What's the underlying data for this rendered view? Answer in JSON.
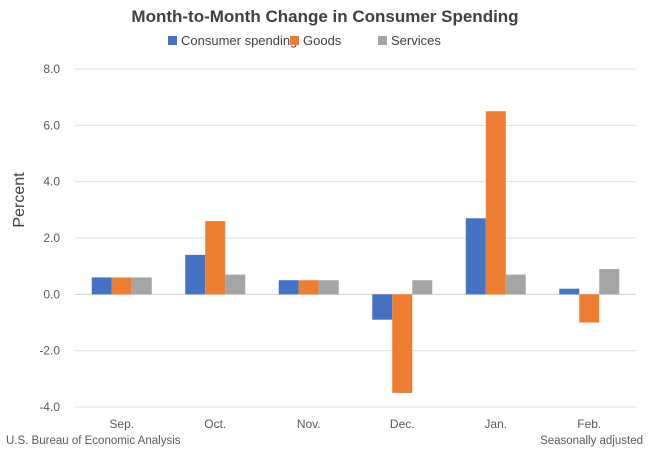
{
  "chart_data": {
    "type": "bar",
    "title": "Month-to-Month Change in Consumer Spending",
    "ylabel": "Percent",
    "xlabel": "",
    "categories": [
      "Sep.",
      "Oct.",
      "Nov.",
      "Dec.",
      "Jan.",
      "Feb."
    ],
    "series": [
      {
        "name": "Consumer spending",
        "color": "#4472C4",
        "values": [
          0.6,
          1.4,
          0.5,
          -0.9,
          2.7,
          0.2
        ]
      },
      {
        "name": "Goods",
        "color": "#ED7D31",
        "values": [
          0.6,
          2.6,
          0.5,
          -3.5,
          6.5,
          -1.0
        ]
      },
      {
        "name": "Services",
        "color": "#A5A5A5",
        "values": [
          0.6,
          0.7,
          0.5,
          0.5,
          0.7,
          0.9
        ]
      }
    ],
    "ylim": [
      -4,
      8
    ],
    "yticks": [
      "8.0",
      "6.0",
      "4.0",
      "2.0",
      "0.0",
      "-2.0",
      "-4.0"
    ],
    "ytick_values": [
      8,
      6,
      4,
      2,
      0,
      -2,
      -4
    ],
    "grid": true,
    "legend_position": "top",
    "source": "U.S. Bureau of Economic Analysis",
    "note": "Seasonally adjusted"
  }
}
